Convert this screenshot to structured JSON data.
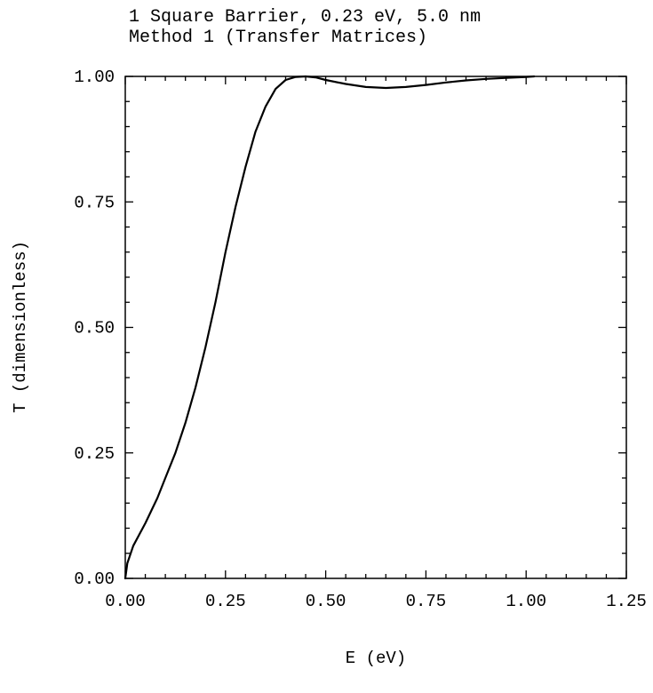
{
  "chart_data": {
    "type": "line",
    "title": "1 Square Barrier, 0.23 eV, 5.0 nm",
    "subtitle": "Method 1 (Transfer Matrices)",
    "xlabel": "E (eV)",
    "ylabel": "T (dimensionless)",
    "xlim": [
      0,
      1.25
    ],
    "ylim": [
      0,
      1
    ],
    "x_ticks": [
      "0.00",
      "0.25",
      "0.50",
      "0.75",
      "1.00",
      "1.25"
    ],
    "y_ticks": [
      "0.00",
      "0.25",
      "0.50",
      "0.75",
      "1.00"
    ],
    "grid": false,
    "series": [
      {
        "color": "#000000",
        "x": [
          0.0,
          0.005,
          0.02,
          0.05,
          0.08,
          0.1,
          0.125,
          0.15,
          0.175,
          0.2,
          0.225,
          0.25,
          0.275,
          0.3,
          0.325,
          0.35,
          0.375,
          0.4,
          0.425,
          0.45,
          0.475,
          0.5,
          0.55,
          0.6,
          0.65,
          0.7,
          0.75,
          0.8,
          0.85,
          0.9,
          0.95,
          1.0,
          1.02
        ],
        "y": [
          0.0,
          0.03,
          0.065,
          0.11,
          0.16,
          0.2,
          0.25,
          0.31,
          0.38,
          0.46,
          0.55,
          0.65,
          0.74,
          0.82,
          0.89,
          0.94,
          0.975,
          0.993,
          0.999,
          1.0,
          0.998,
          0.993,
          0.985,
          0.979,
          0.977,
          0.979,
          0.983,
          0.988,
          0.992,
          0.995,
          0.997,
          0.999,
          1.0
        ]
      }
    ]
  }
}
